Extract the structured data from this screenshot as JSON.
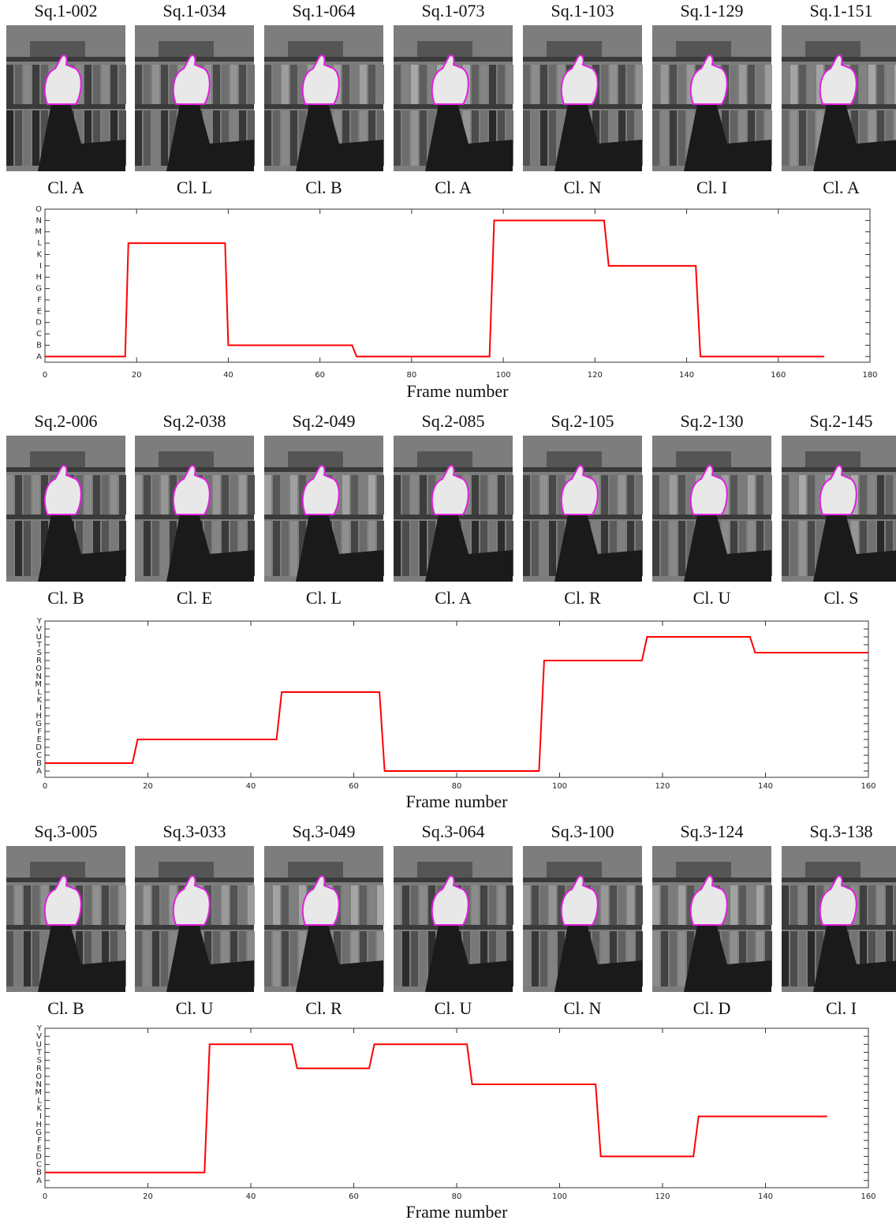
{
  "sequences": [
    {
      "frames": [
        {
          "label": "Sq.1-002",
          "class": "Cl. A"
        },
        {
          "label": "Sq.1-034",
          "class": "Cl. L"
        },
        {
          "label": "Sq.1-064",
          "class": "Cl. B"
        },
        {
          "label": "Sq.1-073",
          "class": "Cl. A"
        },
        {
          "label": "Sq.1-103",
          "class": "Cl. N"
        },
        {
          "label": "Sq.1-129",
          "class": "Cl. I"
        },
        {
          "label": "Sq.1-151",
          "class": "Cl. A"
        }
      ]
    },
    {
      "frames": [
        {
          "label": "Sq.2-006",
          "class": "Cl. B"
        },
        {
          "label": "Sq.2-038",
          "class": "Cl. E"
        },
        {
          "label": "Sq.2-049",
          "class": "Cl. L"
        },
        {
          "label": "Sq.2-085",
          "class": "Cl. A"
        },
        {
          "label": "Sq.2-105",
          "class": "Cl. R"
        },
        {
          "label": "Sq.2-130",
          "class": "Cl. U"
        },
        {
          "label": "Sq.2-145",
          "class": "Cl. S"
        }
      ]
    },
    {
      "frames": [
        {
          "label": "Sq.3-005",
          "class": "Cl. B"
        },
        {
          "label": "Sq.3-033",
          "class": "Cl. U"
        },
        {
          "label": "Sq.3-049",
          "class": "Cl. R"
        },
        {
          "label": "Sq.3-064",
          "class": "Cl. U"
        },
        {
          "label": "Sq.3-100",
          "class": "Cl. N"
        },
        {
          "label": "Sq.3-124",
          "class": "Cl. D"
        },
        {
          "label": "Sq.3-138",
          "class": "Cl. I"
        }
      ]
    }
  ],
  "chart_data": [
    {
      "type": "line",
      "xlabel": "Frame number",
      "x": [
        0,
        17.5,
        18.2,
        39.3,
        40,
        67,
        68,
        97,
        98,
        122,
        123,
        142,
        143,
        170
      ],
      "series": [
        {
          "color": "#ff0000",
          "values": [
            0,
            0,
            10,
            10,
            1,
            1,
            0,
            0,
            12,
            12,
            8,
            8,
            0,
            0
          ]
        }
      ],
      "xlim": [
        0,
        180
      ],
      "xticks": [
        0,
        20,
        40,
        60,
        80,
        100,
        120,
        140,
        160,
        180
      ],
      "ylim": [
        -0.5,
        13
      ],
      "yticks": [
        {
          "value": 0,
          "label": "A"
        },
        {
          "value": 1,
          "label": "B"
        },
        {
          "value": 2,
          "label": "C"
        },
        {
          "value": 3,
          "label": "D"
        },
        {
          "value": 4,
          "label": "E"
        },
        {
          "value": 5,
          "label": "F"
        },
        {
          "value": 6,
          "label": "G"
        },
        {
          "value": 7,
          "label": "H"
        },
        {
          "value": 8,
          "label": "I"
        },
        {
          "value": 9,
          "label": "K"
        },
        {
          "value": 10,
          "label": "L"
        },
        {
          "value": 11,
          "label": "M"
        },
        {
          "value": 12,
          "label": "N"
        },
        {
          "value": 13,
          "label": "O"
        }
      ]
    },
    {
      "type": "line",
      "xlabel": "Frame number",
      "x": [
        0,
        17,
        18,
        45,
        46,
        65,
        66,
        96,
        97,
        116,
        117,
        137,
        138,
        160
      ],
      "series": [
        {
          "color": "#ff0000",
          "values": [
            1,
            1,
            4,
            4,
            10,
            10,
            0,
            0,
            14,
            14,
            17,
            17,
            15,
            15
          ]
        }
      ],
      "xlim": [
        0,
        160
      ],
      "xticks": [
        0,
        20,
        40,
        60,
        80,
        100,
        120,
        140,
        160
      ],
      "ylim": [
        -0.8,
        19
      ],
      "yticks": [
        {
          "value": 0,
          "label": "A"
        },
        {
          "value": 1,
          "label": "B"
        },
        {
          "value": 2,
          "label": "C"
        },
        {
          "value": 3,
          "label": "D"
        },
        {
          "value": 4,
          "label": "E"
        },
        {
          "value": 5,
          "label": "F"
        },
        {
          "value": 6,
          "label": "G"
        },
        {
          "value": 7,
          "label": "H"
        },
        {
          "value": 8,
          "label": "I"
        },
        {
          "value": 9,
          "label": "K"
        },
        {
          "value": 10,
          "label": "L"
        },
        {
          "value": 11,
          "label": "M"
        },
        {
          "value": 12,
          "label": "N"
        },
        {
          "value": 13,
          "label": "O"
        },
        {
          "value": 14,
          "label": "R"
        },
        {
          "value": 15,
          "label": "S"
        },
        {
          "value": 16,
          "label": "T"
        },
        {
          "value": 17,
          "label": "U"
        },
        {
          "value": 18,
          "label": "V"
        },
        {
          "value": 19,
          "label": "Y"
        }
      ]
    },
    {
      "type": "line",
      "xlabel": "Frame number",
      "x": [
        0,
        31,
        32,
        48,
        49,
        63,
        64,
        82,
        83,
        107,
        108,
        126,
        127,
        152
      ],
      "series": [
        {
          "color": "#ff0000",
          "values": [
            1,
            1,
            17,
            17,
            14,
            14,
            17,
            17,
            12,
            12,
            3,
            3,
            8,
            8
          ]
        }
      ],
      "xlim": [
        0,
        160
      ],
      "xticks": [
        0,
        20,
        40,
        60,
        80,
        100,
        120,
        140,
        160
      ],
      "ylim": [
        -0.9,
        19
      ],
      "yticks": [
        {
          "value": 0,
          "label": "A"
        },
        {
          "value": 1,
          "label": "B"
        },
        {
          "value": 2,
          "label": "C"
        },
        {
          "value": 3,
          "label": "D"
        },
        {
          "value": 4,
          "label": "E"
        },
        {
          "value": 5,
          "label": "F"
        },
        {
          "value": 6,
          "label": "G"
        },
        {
          "value": 7,
          "label": "H"
        },
        {
          "value": 8,
          "label": "I"
        },
        {
          "value": 9,
          "label": "K"
        },
        {
          "value": 10,
          "label": "L"
        },
        {
          "value": 11,
          "label": "M"
        },
        {
          "value": 12,
          "label": "N"
        },
        {
          "value": 13,
          "label": "O"
        },
        {
          "value": 14,
          "label": "R"
        },
        {
          "value": 15,
          "label": "S"
        },
        {
          "value": 16,
          "label": "T"
        },
        {
          "value": 17,
          "label": "U"
        },
        {
          "value": 18,
          "label": "V"
        },
        {
          "value": 19,
          "label": "Y"
        }
      ]
    }
  ]
}
